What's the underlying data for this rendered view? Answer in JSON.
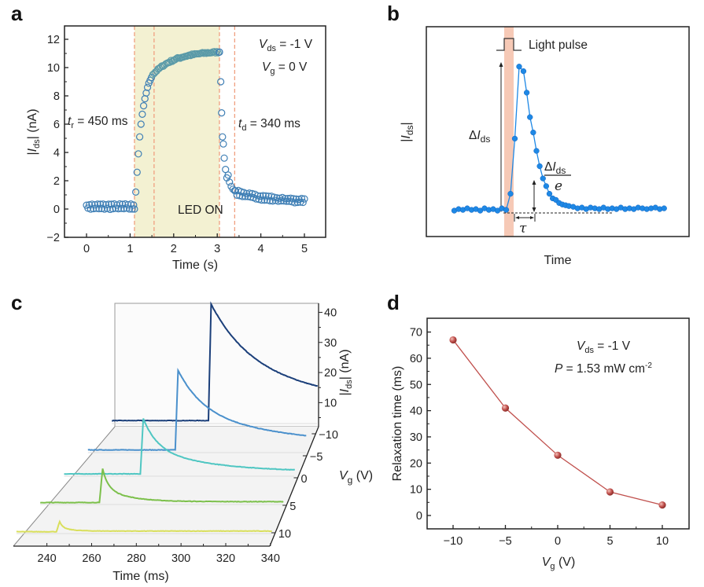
{
  "chart_data": [
    {
      "id": "a",
      "panel_label": "a",
      "type": "scatter",
      "xlabel": "Time (s)",
      "ylabel": "|I_ds| (nA)",
      "ylabel_parts": {
        "pre": "|",
        "var": "I",
        "sub": "ds",
        "post": "| (nA)"
      },
      "xlim": [
        -0.6,
        5.5
      ],
      "ylim": [
        -2,
        13
      ],
      "xticks": [
        0,
        1,
        2,
        3,
        4,
        5
      ],
      "yticks": [
        -2,
        0,
        2,
        4,
        6,
        8,
        10,
        12
      ],
      "ytick_labels": [
        "−2",
        "0",
        "2",
        "4",
        "6",
        "8",
        "10",
        "12"
      ],
      "shaded_region": {
        "x": [
          1.1,
          3.05
        ],
        "label": "LED ON",
        "color": "#f3f1d2"
      },
      "dashed_lines_x": [
        1.1,
        1.55,
        3.05,
        3.4
      ],
      "marker": {
        "style": "open-circle",
        "color": "#3f7fb5"
      },
      "annotations": {
        "vds": {
          "var": "V",
          "sub": "ds",
          "text": " = -1 V"
        },
        "vg": {
          "var": "V",
          "sub": "g",
          "text": " = 0 V"
        },
        "tr": {
          "var": "t",
          "sub": "r",
          "text": " = 450 ms"
        },
        "td": {
          "var": "t",
          "sub": "d",
          "text": " = 340 ms"
        },
        "led": "LED ON"
      },
      "segments": [
        {
          "name": "dark-before",
          "x_range": [
            0,
            1.08
          ],
          "level": 0.2,
          "noise": 0.2
        },
        {
          "name": "rise",
          "x": [
            1.1,
            1.13,
            1.16,
            1.19,
            1.22,
            1.25,
            1.28,
            1.31,
            1.34,
            1.37,
            1.4,
            1.43,
            1.46,
            1.49,
            1.52
          ],
          "y": [
            0.0,
            1.2,
            2.6,
            3.9,
            5.1,
            6.0,
            6.7,
            7.3,
            7.8,
            8.2,
            8.6,
            8.9,
            9.1,
            9.3,
            9.5
          ]
        },
        {
          "name": "saturation",
          "x_range": [
            1.55,
            3.05
          ],
          "y_start": 9.6,
          "y_end": 11.1
        },
        {
          "name": "decay",
          "x": [
            3.05,
            3.08,
            3.1,
            3.12,
            3.14,
            3.16,
            3.19,
            3.22,
            3.25,
            3.28,
            3.32,
            3.36,
            3.4
          ],
          "y": [
            11.1,
            9.0,
            6.8,
            5.1,
            4.6,
            3.6,
            2.8,
            2.2,
            2.4,
            1.9,
            1.6,
            1.4,
            1.3
          ]
        },
        {
          "name": "tail",
          "x_range": [
            3.42,
            5.0
          ],
          "y_start": 1.2,
          "y_end": 0.5
        }
      ]
    },
    {
      "id": "b",
      "panel_label": "b",
      "type": "line",
      "schematic": true,
      "xlabel": "Time",
      "ylabel": "|I_ds|",
      "ylabel_parts": {
        "pre": "|",
        "var": "I",
        "sub": "ds",
        "post": "|"
      },
      "light_pulse_label": "Light pulse",
      "delta_label": {
        "pre": "Δ",
        "var": "I",
        "sub": "ds"
      },
      "fraction_label": {
        "num_pre": "Δ",
        "num_var": "I",
        "num_sub": "ds",
        "den": "e"
      },
      "tau_label": "τ",
      "color": "#1e88e5",
      "band_color": "#f6c9b6",
      "xlim": [
        0,
        100
      ],
      "ylim": [
        0,
        100
      ],
      "series": [
        {
          "name": "response",
          "x": [
            2,
            4,
            6,
            8,
            10,
            12,
            14,
            16,
            18,
            20,
            22,
            24,
            26,
            28,
            30,
            32,
            34,
            35.5,
            37,
            38.5,
            40,
            41.5,
            43,
            44.5,
            46,
            47.5,
            49,
            50.5,
            52,
            53.5,
            55,
            57,
            59,
            61,
            63,
            65,
            67,
            69,
            71,
            73,
            75,
            77,
            79,
            81,
            83,
            85,
            87,
            89,
            91,
            93,
            95,
            97,
            99
          ],
          "y": [
            1,
            2,
            1.5,
            2.5,
            1.5,
            2,
            1,
            2.5,
            1.5,
            2,
            1,
            2.5,
            1.5,
            12,
            48,
            95,
            92,
            78,
            62,
            52,
            40,
            30,
            22,
            17,
            12,
            9,
            8,
            6,
            5,
            4.5,
            4,
            3.5,
            2.5,
            3,
            2,
            3,
            2.5,
            2,
            3,
            2,
            2.5,
            2,
            3,
            2,
            2.5,
            2,
            3,
            2.5,
            2,
            2.5,
            3,
            2,
            2.5
          ]
        }
      ]
    },
    {
      "id": "c",
      "panel_label": "c",
      "type": "line",
      "waterfall_3d": true,
      "xlabel": "Time (ms)",
      "ylabel": "|I_ds| (nA)",
      "ylabel_parts": {
        "pre": "|",
        "var": "I",
        "sub": "ds",
        "post": "| (nA)"
      },
      "depth_label": {
        "var": "V",
        "sub": "g",
        "post": " (V)"
      },
      "xlim": [
        225,
        342
      ],
      "zlim": [
        0,
        45
      ],
      "xticks": [
        240,
        260,
        280,
        300,
        320,
        340
      ],
      "zticks": [
        10,
        20,
        30,
        40
      ],
      "depth_ticks": [
        -10,
        -5,
        0,
        5,
        10
      ],
      "depth_tick_labels": [
        "−10",
        "−5",
        "0",
        "5",
        "10"
      ],
      "series": [
        {
          "name": "Vg = 10 V",
          "vg": 10,
          "color": "#d9df5c",
          "onset": 243,
          "peak": 3.3,
          "tau": 3,
          "baseline": 0.3
        },
        {
          "name": "Vg = 5 V",
          "vg": 5,
          "color": "#7cc04b",
          "onset": 253,
          "peak": 11,
          "tau": 7,
          "baseline": 0.4
        },
        {
          "name": "Vg = 0 V",
          "vg": 0,
          "color": "#4fc6c2",
          "onset": 263,
          "peak": 18,
          "tau": 20,
          "baseline": 0.8
        },
        {
          "name": "Vg = -5 V",
          "vg": -5,
          "color": "#4a90cc",
          "onset": 271,
          "peak": 26,
          "tau": 38,
          "baseline": 1.2
        },
        {
          "name": "Vg = -10 V",
          "vg": -10,
          "color": "#1b3f7a",
          "onset": 279,
          "peak": 38,
          "tau": 60,
          "baseline": 1.5
        }
      ]
    },
    {
      "id": "d",
      "panel_label": "d",
      "type": "line",
      "xlabel": "V_g (V)",
      "xlabel_parts": {
        "var": "V",
        "sub": "g",
        "post": " (V)"
      },
      "ylabel": "Relaxation time (ms)",
      "xlim": [
        -12.5,
        12.5
      ],
      "ylim": [
        -5,
        75
      ],
      "xticks": [
        -10,
        -5,
        0,
        5,
        10
      ],
      "xtick_labels": [
        "−10",
        "−5",
        "0",
        "5",
        "10"
      ],
      "yticks": [
        0,
        10,
        20,
        30,
        40,
        50,
        60,
        70
      ],
      "color": "#c0504d",
      "x": [
        -10,
        -5,
        0,
        5,
        10
      ],
      "y": [
        67,
        41,
        23,
        9,
        4
      ],
      "annotations": {
        "vds": {
          "var": "V",
          "sub": "ds",
          "text": " = -1 V"
        },
        "power": {
          "var": "P",
          "text": " = 1.53 mW cm",
          "sup": "-2"
        }
      }
    }
  ]
}
